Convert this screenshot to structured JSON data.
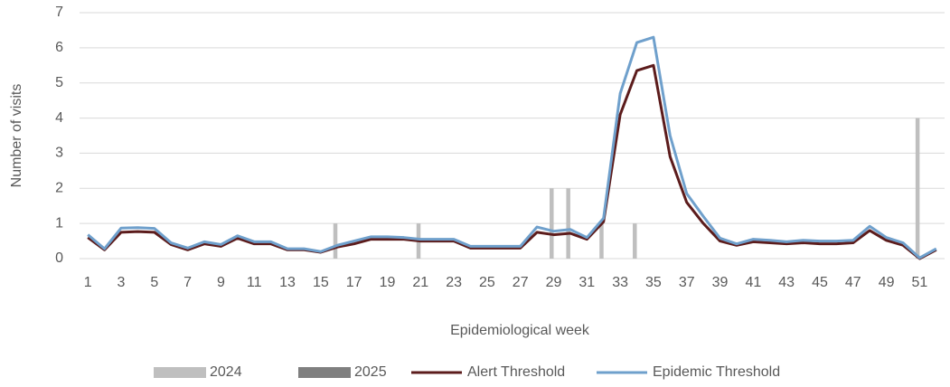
{
  "chart_data": {
    "type": "combo",
    "xlabel": "Epidemiological week",
    "ylabel": "Number of visits",
    "categories": [
      "1",
      null,
      "3",
      null,
      "5",
      null,
      "7",
      null,
      "9",
      null,
      "11",
      null,
      "13",
      null,
      "15",
      null,
      "17",
      null,
      "19",
      null,
      "21",
      null,
      "23",
      null,
      "25",
      null,
      "27",
      null,
      "29",
      null,
      "31",
      null,
      "33",
      null,
      "35",
      null,
      "37",
      null,
      "39",
      null,
      "41",
      null,
      "43",
      null,
      "45",
      null,
      "47",
      null,
      "49",
      null,
      "51",
      null
    ],
    "ylim": [
      0,
      7
    ],
    "yticks": [
      0,
      1,
      2,
      3,
      4,
      5,
      6,
      7
    ],
    "grid": true,
    "legend": "bottom",
    "series": [
      {
        "name": "2024",
        "type": "bar",
        "color": "#bfbfbf",
        "values": [
          0,
          0,
          0,
          0,
          0,
          0,
          0,
          0,
          0,
          0,
          0,
          0,
          0,
          0,
          0,
          1,
          0,
          0,
          0,
          0,
          1,
          0,
          0,
          0,
          0,
          0,
          0,
          0,
          2,
          2,
          0,
          1,
          0,
          1,
          0,
          0,
          0,
          0,
          0,
          0,
          0,
          0,
          0,
          0,
          0,
          0,
          0,
          0,
          0,
          0,
          4,
          0
        ]
      },
      {
        "name": "2025",
        "type": "bar",
        "color": "#7f7f7f",
        "values": [
          0,
          0,
          0,
          0,
          0,
          0,
          0,
          0,
          0,
          0,
          0,
          0,
          0,
          0,
          0,
          0,
          0,
          0,
          0,
          0,
          0,
          0,
          0,
          0,
          0,
          0,
          0,
          0,
          0,
          0,
          0,
          0,
          0,
          0,
          0,
          0,
          0,
          0,
          0,
          0,
          0,
          0,
          0,
          0,
          0,
          0,
          0,
          0,
          0,
          0,
          0,
          0
        ]
      },
      {
        "name": "Alert Threshold",
        "type": "line",
        "color": "#5c1c1c",
        "values": [
          0.6,
          0.25,
          0.75,
          0.77,
          0.75,
          0.4,
          0.25,
          0.42,
          0.35,
          0.58,
          0.42,
          0.42,
          0.25,
          0.25,
          0.18,
          0.33,
          0.42,
          0.55,
          0.55,
          0.55,
          0.5,
          0.5,
          0.5,
          0.3,
          0.3,
          0.3,
          0.3,
          0.75,
          0.68,
          0.72,
          0.55,
          1.05,
          4.1,
          5.35,
          5.5,
          2.9,
          1.6,
          1.0,
          0.5,
          0.38,
          0.48,
          0.45,
          0.42,
          0.45,
          0.42,
          0.42,
          0.45,
          0.8,
          0.52,
          0.38,
          0.0,
          0.25
        ]
      },
      {
        "name": "Epidemic Threshold",
        "type": "line",
        "color": "#6fa0cc",
        "values": [
          0.68,
          0.28,
          0.87,
          0.88,
          0.86,
          0.45,
          0.3,
          0.48,
          0.4,
          0.65,
          0.48,
          0.48,
          0.28,
          0.28,
          0.2,
          0.38,
          0.5,
          0.62,
          0.62,
          0.6,
          0.55,
          0.55,
          0.55,
          0.35,
          0.35,
          0.35,
          0.35,
          0.9,
          0.78,
          0.83,
          0.6,
          1.15,
          4.7,
          6.15,
          6.3,
          3.5,
          1.85,
          1.2,
          0.58,
          0.42,
          0.55,
          0.52,
          0.48,
          0.52,
          0.5,
          0.5,
          0.52,
          0.92,
          0.6,
          0.45,
          0.02,
          0.28
        ]
      }
    ]
  }
}
